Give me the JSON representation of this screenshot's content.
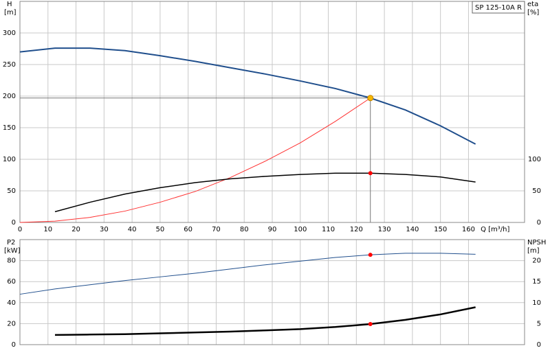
{
  "chart_data": [
    {
      "type": "line",
      "ylabel": "H",
      "yunit": "[m]",
      "y2label": "eta",
      "y2unit": "[%]",
      "xlabel": "Q [m³/h]",
      "legend": "SP 125-10A R",
      "x": [
        0,
        12.5,
        25,
        37.5,
        50,
        62.5,
        75,
        87.5,
        100,
        112.5,
        125,
        137.5,
        150,
        162.5
      ],
      "xlim": [
        0,
        180
      ],
      "xticks": [
        0,
        10,
        20,
        30,
        40,
        50,
        60,
        70,
        80,
        90,
        100,
        110,
        120,
        130,
        140,
        150,
        160
      ],
      "ylim": [
        0,
        350
      ],
      "yticks": [
        0,
        50,
        100,
        150,
        200,
        250,
        300
      ],
      "y2lim": [
        0,
        350
      ],
      "y2ticks": [
        0,
        50,
        100
      ],
      "duty_x": 125,
      "series": [
        {
          "name": "H",
          "color": "#1f4e8c",
          "width": 2,
          "values": [
            270,
            276,
            276,
            272,
            264,
            255,
            245,
            235,
            224,
            212,
            197,
            178,
            153,
            124
          ],
          "duty_value": 197,
          "duty_color": "#f5b800"
        },
        {
          "name": "system",
          "color": "#ff3030",
          "width": 1,
          "values": [
            0,
            2,
            8,
            18,
            32,
            49,
            71,
            97,
            126,
            160,
            197,
            null,
            null,
            null
          ]
        },
        {
          "name": "eta",
          "color": "#000000",
          "width": 1.5,
          "axis": "y2",
          "values": [
            null,
            17,
            32,
            45,
            55,
            63,
            69,
            73,
            76,
            78,
            78,
            76,
            72,
            64
          ],
          "duty_value": 78,
          "duty_color": "#ff0000"
        }
      ]
    },
    {
      "type": "line",
      "ylabel": "P2",
      "yunit": "[kW]",
      "y2label": "NPSH",
      "y2unit": "[m]",
      "x": [
        0,
        12.5,
        25,
        37.5,
        50,
        62.5,
        75,
        87.5,
        100,
        112.5,
        125,
        137.5,
        150,
        162.5
      ],
      "xlim": [
        0,
        180
      ],
      "xticks": [
        0,
        10,
        20,
        30,
        40,
        50,
        60,
        70,
        80,
        90,
        100,
        110,
        120,
        130,
        140,
        150,
        160
      ],
      "ylim": [
        0,
        100
      ],
      "yticks": [
        0,
        20,
        40,
        60,
        80
      ],
      "y2lim": [
        0,
        25
      ],
      "y2ticks": [
        0,
        5,
        10,
        15,
        20
      ],
      "duty_x": 125,
      "series": [
        {
          "name": "P2",
          "color": "#1f4e8c",
          "width": 1,
          "values": [
            48,
            53,
            57,
            61,
            64.5,
            68,
            72,
            76,
            79.5,
            83,
            85.5,
            87,
            87,
            86
          ],
          "duty_value": 85.5,
          "duty_color": "#ff0000"
        },
        {
          "name": "NPSH",
          "color": "#000000",
          "width": 2.5,
          "axis": "y2",
          "values": [
            null,
            2.3,
            2.4,
            2.5,
            2.7,
            2.9,
            3.1,
            3.4,
            3.7,
            4.2,
            4.9,
            5.9,
            7.2,
            8.9
          ],
          "duty_value": 4.9,
          "duty_color": "#ff0000"
        }
      ]
    }
  ]
}
